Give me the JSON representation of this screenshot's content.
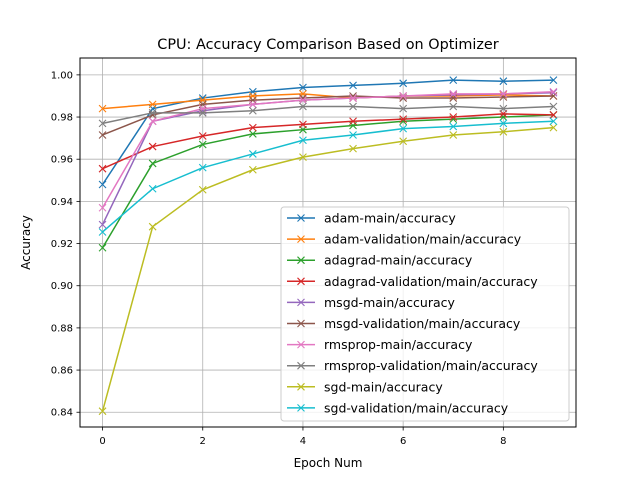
{
  "chart_data": {
    "type": "line",
    "title": "CPU: Accuracy Comparison Based on Optimizer",
    "xlabel": "Epoch Num",
    "ylabel": "Accuracy",
    "xlim": [
      -0.45,
      9.45
    ],
    "ylim": [
      0.833,
      1.008
    ],
    "xticks": [
      0,
      2,
      4,
      6,
      8
    ],
    "yticks": [
      0.84,
      0.86,
      0.88,
      0.9,
      0.92,
      0.94,
      0.96,
      0.98,
      1.0
    ],
    "xtick_labels": [
      "0",
      "2",
      "4",
      "6",
      "8"
    ],
    "ytick_labels": [
      "0.84",
      "0.86",
      "0.88",
      "0.90",
      "0.92",
      "0.94",
      "0.96",
      "0.98",
      "1.00"
    ],
    "grid": true,
    "legend_position": "bottom-right",
    "marker": "x",
    "x": [
      0,
      1,
      2,
      3,
      4,
      5,
      6,
      7,
      8,
      9
    ],
    "series": [
      {
        "name": "adam-main/accuracy",
        "color": "#1f77b4",
        "values": [
          0.948,
          0.984,
          0.989,
          0.992,
          0.994,
          0.995,
          0.996,
          0.9975,
          0.997,
          0.9975
        ]
      },
      {
        "name": "adam-validation/main/accuracy",
        "color": "#ff7f0e",
        "values": [
          0.984,
          0.986,
          0.988,
          0.99,
          0.991,
          0.989,
          0.99,
          0.99,
          0.9905,
          0.99
        ]
      },
      {
        "name": "adagrad-main/accuracy",
        "color": "#2ca02c",
        "values": [
          0.918,
          0.958,
          0.967,
          0.972,
          0.974,
          0.976,
          0.978,
          0.979,
          0.98,
          0.981
        ]
      },
      {
        "name": "adagrad-validation/main/accuracy",
        "color": "#d62728",
        "values": [
          0.9555,
          0.966,
          0.971,
          0.975,
          0.9765,
          0.978,
          0.979,
          0.98,
          0.9815,
          0.981
        ]
      },
      {
        "name": "msgd-main/accuracy",
        "color": "#9467bd",
        "values": [
          0.929,
          0.978,
          0.983,
          0.986,
          0.988,
          0.989,
          0.99,
          0.9905,
          0.991,
          0.9915
        ]
      },
      {
        "name": "msgd-validation/main/accuracy",
        "color": "#8c564b",
        "values": [
          0.9715,
          0.981,
          0.986,
          0.988,
          0.989,
          0.99,
          0.989,
          0.989,
          0.9895,
          0.99
        ]
      },
      {
        "name": "rmsprop-main/accuracy",
        "color": "#e377c2",
        "values": [
          0.937,
          0.978,
          0.984,
          0.986,
          0.988,
          0.989,
          0.99,
          0.991,
          0.991,
          0.992
        ]
      },
      {
        "name": "rmsprop-validation/main/accuracy",
        "color": "#7f7f7f",
        "values": [
          0.977,
          0.982,
          0.982,
          0.983,
          0.985,
          0.985,
          0.984,
          0.985,
          0.984,
          0.985
        ]
      },
      {
        "name": "sgd-main/accuracy",
        "color": "#bcbd22",
        "values": [
          0.8405,
          0.928,
          0.9455,
          0.955,
          0.961,
          0.965,
          0.9685,
          0.9715,
          0.973,
          0.975
        ]
      },
      {
        "name": "sgd-validation/main/accuracy",
        "color": "#17becf",
        "values": [
          0.9255,
          0.946,
          0.956,
          0.9625,
          0.969,
          0.9715,
          0.9745,
          0.9755,
          0.977,
          0.978
        ]
      }
    ]
  }
}
